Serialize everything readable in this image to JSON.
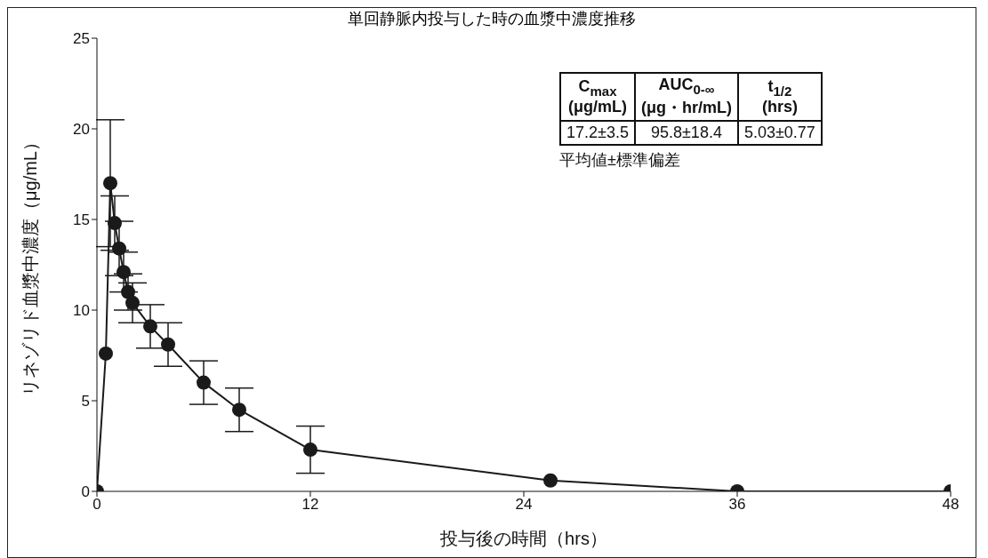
{
  "chart_data": {
    "type": "line",
    "title": "単回静脈内投与した時の血漿中濃度推移",
    "xlabel": "投与後の時間（hrs）",
    "ylabel": "リネゾリド血漿中濃度（μg/mL）",
    "x": [
      0,
      0.5,
      0.75,
      1,
      1.25,
      1.5,
      1.75,
      2,
      3,
      4,
      6,
      8,
      12,
      25.5,
      36,
      48
    ],
    "series": [
      {
        "color": "#1a1a1a",
        "values": [
          0,
          7.6,
          17.0,
          14.8,
          13.4,
          12.1,
          11.0,
          10.4,
          9.1,
          8.1,
          6.0,
          4.5,
          2.3,
          0.6,
          0,
          0
        ],
        "errors": [
          null,
          null,
          3.5,
          1.5,
          1.5,
          1.1,
          1.0,
          1.1,
          1.2,
          1.2,
          1.2,
          1.2,
          1.3,
          null,
          null,
          null
        ]
      }
    ],
    "xlim": [
      0,
      48
    ],
    "xticks": [
      0,
      12,
      24,
      36,
      48
    ],
    "ylim": [
      0,
      25
    ],
    "yticks": [
      0,
      5,
      10,
      15,
      20,
      25
    ],
    "grid": false,
    "legend": false,
    "marker": "circle",
    "line_style": "solid",
    "annotations": [
      "C$_{max}$ (μg/mL)",
      "AUC$_{0-∞}$ (μg・hr/mL)",
      "t$_{1/2}$ (hrs)",
      "17.2±3.5",
      "95.8±18.4",
      "5.03±0.77",
      "平均値±標準偏差"
    ]
  }
}
